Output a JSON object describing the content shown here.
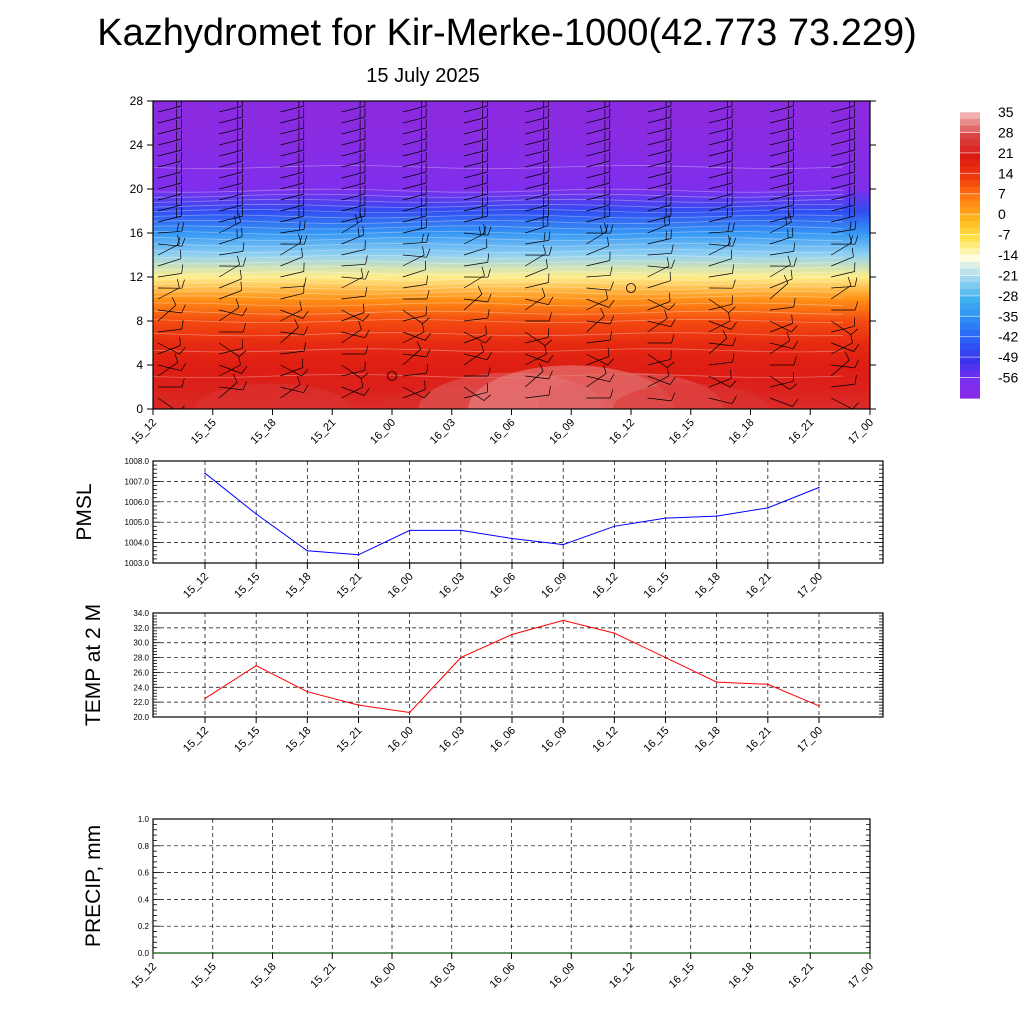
{
  "title": "Kazhydromet for Kir-Merke-1000(42.773 73.229)",
  "subtitle": "15 July 2025",
  "chart_data": [
    {
      "type": "heatmap",
      "title": "",
      "xlabel": "",
      "ylabel": "",
      "x_tick_labels": [
        "15_12",
        "15_15",
        "15_18",
        "15_21",
        "16_00",
        "16_03",
        "16_06",
        "16_09",
        "16_12",
        "16_15",
        "16_18",
        "16_21",
        "17_00"
      ],
      "y_ticks": [
        0,
        4,
        8,
        12,
        16,
        20,
        24,
        28
      ],
      "ylim": [
        0,
        28
      ],
      "colorbar_labels": [
        "35",
        "28",
        "21",
        "14",
        "7",
        "0",
        "-7",
        "-14",
        "-21",
        "-28",
        "-35",
        "-42",
        "-49",
        "-56"
      ],
      "colorbar_values": [
        35,
        28,
        21,
        14,
        7,
        0,
        -7,
        -14,
        -21,
        -28,
        -35,
        -42,
        -49,
        -56
      ],
      "colorscale": [
        {
          "value": -63,
          "color": "#8a2be2"
        },
        {
          "value": -56,
          "color": "#7b2ff0"
        },
        {
          "value": -49,
          "color": "#3a34ee"
        },
        {
          "value": -42,
          "color": "#2a5ef5"
        },
        {
          "value": -35,
          "color": "#2f8cf5"
        },
        {
          "value": -28,
          "color": "#3fb2f0"
        },
        {
          "value": -21,
          "color": "#9fd6f2"
        },
        {
          "value": -14,
          "color": "#fffde0"
        },
        {
          "value": -7,
          "color": "#ffe24a"
        },
        {
          "value": 0,
          "color": "#ffb21c"
        },
        {
          "value": 7,
          "color": "#ff7a12"
        },
        {
          "value": 14,
          "color": "#f0380f"
        },
        {
          "value": 21,
          "color": "#dc1a14"
        },
        {
          "value": 28,
          "color": "#d94545"
        },
        {
          "value": 35,
          "color": "#f0b0b0"
        }
      ],
      "height_levels": [
        0,
        2,
        4,
        6,
        8,
        10,
        12,
        14,
        16,
        18,
        20,
        22,
        24,
        26,
        28
      ],
      "temperature_profile": [
        24,
        22,
        20,
        17,
        12,
        4,
        -10,
        -22,
        -33,
        -45,
        -58,
        -60,
        -62,
        -63,
        -63
      ],
      "surface_temperature": [
        24,
        26,
        28,
        24,
        22,
        27,
        31,
        33,
        31,
        28,
        25,
        24,
        22
      ],
      "calm_markers": [
        {
          "time_index": 4,
          "height": 3
        },
        {
          "time_index": 8,
          "height": 11
        }
      ]
    },
    {
      "type": "line",
      "ylabel": "PMSL",
      "x_tick_labels": [
        "15_12",
        "15_15",
        "15_18",
        "15_21",
        "16_00",
        "16_03",
        "16_06",
        "16_09",
        "16_12",
        "16_15",
        "16_18",
        "16_21",
        "17_00"
      ],
      "y_tick_labels": [
        "1008.0",
        "1007.0",
        "1006.0",
        "1005.0",
        "1004.0",
        "1003.0"
      ],
      "ylim": [
        1003.0,
        1008.0
      ],
      "grid": true,
      "series": [
        {
          "color": "#0000ff",
          "values": [
            1007.4,
            1005.4,
            1003.6,
            1003.4,
            1004.6,
            1004.6,
            1004.2,
            1003.9,
            1004.8,
            1005.2,
            1005.3,
            1005.7,
            1006.7
          ]
        }
      ]
    },
    {
      "type": "line",
      "ylabel": "TEMP at 2 M",
      "x_tick_labels": [
        "15_12",
        "15_15",
        "15_18",
        "15_21",
        "16_00",
        "16_03",
        "16_06",
        "16_09",
        "16_12",
        "16_15",
        "16_18",
        "16_21",
        "17_00"
      ],
      "y_tick_labels": [
        "34.0",
        "32.0",
        "30.0",
        "28.0",
        "26.0",
        "24.0",
        "22.0",
        "20.0"
      ],
      "ylim": [
        20.0,
        34.0
      ],
      "grid": true,
      "series": [
        {
          "color": "#ff0000",
          "values": [
            22.5,
            26.9,
            23.4,
            21.6,
            20.6,
            28.0,
            31.1,
            33.0,
            31.3,
            28.0,
            24.7,
            24.4,
            21.5
          ]
        }
      ]
    },
    {
      "type": "line",
      "ylabel": "PRECIP, mm",
      "x_tick_labels": [
        "15_12",
        "15_15",
        "15_18",
        "15_21",
        "16_00",
        "16_03",
        "16_06",
        "16_09",
        "16_12",
        "16_15",
        "16_18",
        "16_21",
        "17_00"
      ],
      "y_tick_labels": [
        "1.0",
        "0.8",
        "0.6",
        "0.4",
        "0.2",
        "0.0"
      ],
      "ylim": [
        0.0,
        1.0
      ],
      "grid": true,
      "series": [
        {
          "color": "#006400",
          "values": [
            0,
            0,
            0,
            0,
            0,
            0,
            0,
            0,
            0,
            0,
            0,
            0,
            0
          ]
        }
      ]
    }
  ]
}
